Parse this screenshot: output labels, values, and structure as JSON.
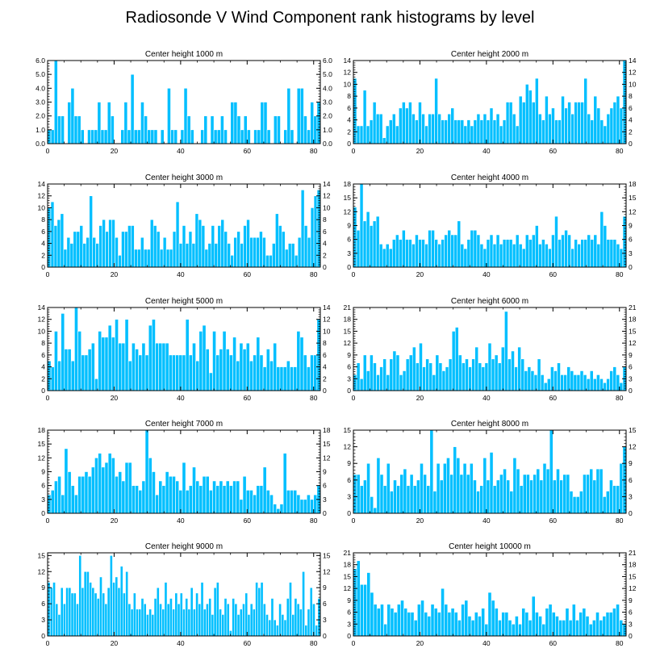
{
  "figure": {
    "title": "Radiosonde V Wind Component rank histograms by level",
    "bar_color": "#00bfff",
    "bar_edge_color": "#ffffff",
    "frame_color": "#000000"
  },
  "chart_data": [
    {
      "type": "bar",
      "title": "Center height 1000 m",
      "xlim": [
        0,
        82
      ],
      "ylim": [
        0,
        6
      ],
      "xticks": [
        0,
        20,
        40,
        60,
        80
      ],
      "yticks": [
        0,
        1,
        2,
        3,
        4,
        5,
        6
      ],
      "ytick_labels": [
        "0.0",
        "1.0",
        "2.0",
        "3.0",
        "4.0",
        "5.0",
        "6.0"
      ],
      "values": [
        1,
        1,
        6,
        2,
        2,
        0,
        3,
        4,
        2,
        2,
        1,
        0,
        1,
        1,
        1,
        3,
        1,
        1,
        3,
        2,
        0,
        0,
        1,
        3,
        1,
        5,
        1,
        1,
        3,
        2,
        1,
        1,
        1,
        0,
        1,
        0,
        4,
        1,
        1,
        0,
        1,
        4,
        2,
        1,
        0,
        0,
        1,
        2,
        0,
        2,
        1,
        1,
        2,
        1,
        0,
        3,
        3,
        2,
        1,
        2,
        1,
        0,
        1,
        1,
        3,
        3,
        1,
        0,
        2,
        2,
        0,
        1,
        4,
        1,
        0,
        4,
        4,
        2,
        1,
        3,
        2,
        3
      ]
    },
    {
      "type": "bar",
      "title": "Center height 2000 m",
      "xlim": [
        0,
        82
      ],
      "ylim": [
        0,
        14
      ],
      "xticks": [
        0,
        20,
        40,
        60,
        80
      ],
      "yticks": [
        0,
        2,
        4,
        6,
        8,
        10,
        12,
        14
      ],
      "ytick_labels": [
        "0",
        "2",
        "4",
        "6",
        "8",
        "10",
        "12",
        "14"
      ],
      "values": [
        11,
        3,
        3,
        9,
        3,
        4,
        7,
        5,
        5,
        1,
        3,
        4,
        5,
        3,
        6,
        7,
        6,
        7,
        5,
        4,
        7,
        5,
        3,
        5,
        5,
        11,
        5,
        4,
        4,
        5,
        6,
        4,
        4,
        4,
        3,
        4,
        3,
        4,
        5,
        4,
        5,
        4,
        6,
        4,
        5,
        3,
        4,
        7,
        7,
        5,
        3,
        8,
        7,
        10,
        9,
        7,
        11,
        5,
        4,
        8,
        5,
        6,
        4,
        4,
        8,
        6,
        7,
        5,
        7,
        7,
        7,
        11,
        5,
        4,
        8,
        6,
        4,
        3,
        5,
        6,
        7,
        8,
        6,
        14
      ]
    },
    {
      "type": "bar",
      "title": "Center height 3000 m",
      "xlim": [
        0,
        82
      ],
      "ylim": [
        0,
        14
      ],
      "xticks": [
        0,
        20,
        40,
        60,
        80
      ],
      "yticks": [
        0,
        2,
        4,
        6,
        8,
        10,
        12,
        14
      ],
      "ytick_labels": [
        "0",
        "2",
        "4",
        "6",
        "8",
        "10",
        "12",
        "14"
      ],
      "values": [
        10,
        11,
        7,
        8,
        9,
        3,
        5,
        4,
        6,
        6,
        7,
        4,
        5,
        12,
        5,
        4,
        7,
        8,
        6,
        8,
        8,
        5,
        2,
        6,
        6,
        7,
        7,
        3,
        3,
        5,
        3,
        3,
        8,
        7,
        6,
        3,
        5,
        3,
        3,
        6,
        11,
        4,
        7,
        4,
        6,
        4,
        9,
        8,
        7,
        3,
        4,
        7,
        4,
        7,
        8,
        6,
        4,
        2,
        5,
        6,
        4,
        7,
        8,
        5,
        5,
        5,
        6,
        5,
        2,
        2,
        4,
        9,
        7,
        6,
        3,
        4,
        4,
        2,
        5,
        13,
        7,
        5,
        10,
        12,
        13
      ]
    },
    {
      "type": "bar",
      "title": "Center height 4000 m",
      "xlim": [
        0,
        82
      ],
      "ylim": [
        0,
        18
      ],
      "xticks": [
        0,
        20,
        40,
        60,
        80
      ],
      "yticks": [
        0,
        3,
        6,
        9,
        12,
        15,
        18
      ],
      "ytick_labels": [
        "0",
        "3",
        "6",
        "9",
        "12",
        "15",
        "18"
      ],
      "values": [
        13,
        8,
        18,
        10,
        12,
        9,
        10,
        11,
        5,
        4,
        5,
        4,
        6,
        7,
        6,
        8,
        6,
        6,
        5,
        7,
        6,
        6,
        5,
        8,
        8,
        6,
        5,
        6,
        7,
        8,
        7,
        7,
        10,
        5,
        4,
        6,
        8,
        8,
        7,
        5,
        4,
        6,
        7,
        5,
        7,
        5,
        6,
        6,
        6,
        5,
        7,
        5,
        4,
        7,
        6,
        7,
        9,
        5,
        6,
        5,
        4,
        7,
        11,
        6,
        7,
        8,
        7,
        4,
        6,
        5,
        6,
        6,
        7,
        6,
        7,
        5,
        12,
        9,
        6,
        6,
        6,
        5,
        4,
        11
      ]
    },
    {
      "type": "bar",
      "title": "Center height 5000 m",
      "xlim": [
        0,
        82
      ],
      "ylim": [
        0,
        14
      ],
      "xticks": [
        0,
        20,
        40,
        60,
        80
      ],
      "yticks": [
        0,
        2,
        4,
        6,
        8,
        10,
        12,
        14
      ],
      "ytick_labels": [
        "0",
        "2",
        "4",
        "6",
        "8",
        "10",
        "12",
        "14"
      ],
      "values": [
        5,
        4,
        10,
        5,
        13,
        7,
        7,
        5,
        14,
        10,
        6,
        6,
        7,
        8,
        2,
        10,
        9,
        9,
        11,
        9,
        12,
        8,
        8,
        12,
        5,
        8,
        7,
        6,
        8,
        6,
        11,
        12,
        8,
        8,
        8,
        8,
        6,
        6,
        6,
        6,
        6,
        12,
        6,
        8,
        5,
        10,
        11,
        7,
        3,
        10,
        6,
        7,
        10,
        7,
        6,
        9,
        5,
        8,
        7,
        8,
        5,
        6,
        9,
        6,
        4,
        7,
        5,
        8,
        4,
        4,
        4,
        5,
        4,
        4,
        10,
        9,
        6,
        4,
        6,
        6,
        12
      ]
    },
    {
      "type": "bar",
      "title": "Center height 6000 m",
      "xlim": [
        0,
        82
      ],
      "ylim": [
        0,
        21
      ],
      "xticks": [
        0,
        20,
        40,
        60,
        80
      ],
      "yticks": [
        0,
        3,
        6,
        9,
        12,
        15,
        18,
        21
      ],
      "ytick_labels": [
        "0",
        "3",
        "6",
        "9",
        "12",
        "15",
        "18",
        "21"
      ],
      "values": [
        4,
        7,
        3,
        9,
        5,
        9,
        7,
        4,
        6,
        8,
        4,
        8,
        10,
        9,
        4,
        5,
        8,
        9,
        11,
        7,
        12,
        6,
        8,
        7,
        4,
        9,
        7,
        5,
        6,
        8,
        15,
        16,
        9,
        7,
        8,
        6,
        8,
        11,
        7,
        6,
        7,
        12,
        8,
        9,
        7,
        11,
        20,
        8,
        10,
        6,
        11,
        8,
        5,
        6,
        5,
        4,
        8,
        4,
        2,
        3,
        6,
        5,
        7,
        4,
        4,
        6,
        5,
        4,
        4,
        5,
        4,
        3,
        5,
        3,
        4,
        3,
        2,
        3,
        5,
        6,
        4,
        2,
        6
      ]
    },
    {
      "type": "bar",
      "title": "Center height 7000 m",
      "xlim": [
        0,
        82
      ],
      "ylim": [
        0,
        18
      ],
      "xticks": [
        0,
        20,
        40,
        60,
        80
      ],
      "yticks": [
        0,
        3,
        6,
        9,
        12,
        15,
        18
      ],
      "ytick_labels": [
        "0",
        "3",
        "6",
        "9",
        "12",
        "15",
        "18"
      ],
      "values": [
        4,
        5,
        7,
        8,
        4,
        14,
        9,
        6,
        4,
        8,
        8,
        9,
        8,
        10,
        12,
        13,
        10,
        11,
        13,
        12,
        8,
        9,
        7,
        11,
        11,
        6,
        6,
        5,
        7,
        18,
        12,
        9,
        4,
        7,
        6,
        9,
        8,
        8,
        7,
        5,
        11,
        5,
        6,
        10,
        7,
        6,
        8,
        8,
        5,
        7,
        6,
        7,
        6,
        7,
        6,
        7,
        7,
        3,
        8,
        5,
        5,
        4,
        6,
        6,
        10,
        5,
        4,
        2,
        1,
        2,
        13,
        5,
        5,
        5,
        4,
        3,
        3,
        4,
        3,
        4,
        6
      ]
    },
    {
      "type": "bar",
      "title": "Center height 8000 m",
      "xlim": [
        0,
        82
      ],
      "ylim": [
        0,
        15
      ],
      "xticks": [
        0,
        20,
        40,
        60,
        80
      ],
      "yticks": [
        0,
        3,
        6,
        9,
        12,
        15
      ],
      "ytick_labels": [
        "0",
        "3",
        "6",
        "9",
        "12",
        "15"
      ],
      "values": [
        7,
        7,
        5,
        6,
        9,
        3,
        1,
        10,
        7,
        5,
        9,
        4,
        6,
        5,
        7,
        8,
        5,
        7,
        5,
        6,
        9,
        7,
        5,
        15,
        4,
        9,
        6,
        9,
        10,
        7,
        12,
        10,
        7,
        9,
        7,
        9,
        6,
        4,
        5,
        10,
        6,
        11,
        5,
        6,
        7,
        8,
        6,
        4,
        10,
        8,
        5,
        7,
        7,
        6,
        7,
        8,
        6,
        9,
        8,
        15,
        6,
        8,
        6,
        7,
        7,
        4,
        3,
        3,
        4,
        7,
        7,
        8,
        6,
        8,
        8,
        3,
        4,
        6,
        5,
        5,
        9,
        12
      ]
    },
    {
      "type": "bar",
      "title": "Center height 9000 m",
      "xlim": [
        0,
        82
      ],
      "ylim": [
        0,
        15.5
      ],
      "xticks": [
        0,
        20,
        40,
        60,
        80
      ],
      "yticks": [
        0,
        3,
        6,
        9,
        12,
        15
      ],
      "ytick_labels": [
        "0",
        "3",
        "6",
        "9",
        "12",
        "15"
      ],
      "values": [
        10,
        9,
        10,
        6,
        4,
        9,
        6,
        9,
        9,
        8,
        8,
        6,
        15,
        9,
        12,
        12,
        10,
        9,
        8,
        7,
        11,
        8,
        6,
        9,
        15,
        10,
        11,
        9,
        13,
        8,
        12,
        6,
        5,
        8,
        5,
        5,
        7,
        6,
        4,
        5,
        4,
        7,
        9,
        6,
        5,
        10,
        6,
        7,
        5,
        8,
        6,
        8,
        5,
        7,
        5,
        9,
        5,
        8,
        6,
        10,
        5,
        6,
        7,
        4,
        9,
        10,
        5,
        4,
        7,
        6,
        1,
        7,
        6,
        4,
        5,
        6,
        8,
        4,
        6,
        5,
        10,
        9,
        10,
        6,
        4,
        3,
        7,
        3,
        2,
        6,
        4,
        3,
        7,
        10,
        4,
        7,
        6,
        5,
        12,
        2,
        5,
        9,
        6,
        2,
        7
      ]
    },
    {
      "type": "bar",
      "title": "Center height 10000 m",
      "xlim": [
        0,
        82
      ],
      "ylim": [
        0,
        21
      ],
      "xticks": [
        0,
        20,
        40,
        60,
        80
      ],
      "yticks": [
        0,
        3,
        6,
        9,
        12,
        15,
        18,
        21
      ],
      "ytick_labels": [
        "0",
        "3",
        "6",
        "9",
        "12",
        "15",
        "18",
        "21"
      ],
      "values": [
        17,
        19,
        13,
        13,
        16,
        11,
        8,
        7,
        8,
        3,
        8,
        7,
        6,
        8,
        9,
        7,
        6,
        6,
        4,
        8,
        9,
        6,
        5,
        8,
        7,
        6,
        12,
        8,
        6,
        7,
        6,
        4,
        8,
        9,
        5,
        4,
        6,
        5,
        7,
        3,
        11,
        9,
        7,
        4,
        6,
        6,
        4,
        3,
        5,
        3,
        7,
        6,
        4,
        10,
        6,
        5,
        3,
        7,
        8,
        6,
        5,
        4,
        4,
        7,
        4,
        8,
        4,
        6,
        7,
        5,
        3,
        4,
        6,
        4,
        5,
        6,
        6,
        7,
        8,
        4,
        3
      ]
    }
  ]
}
